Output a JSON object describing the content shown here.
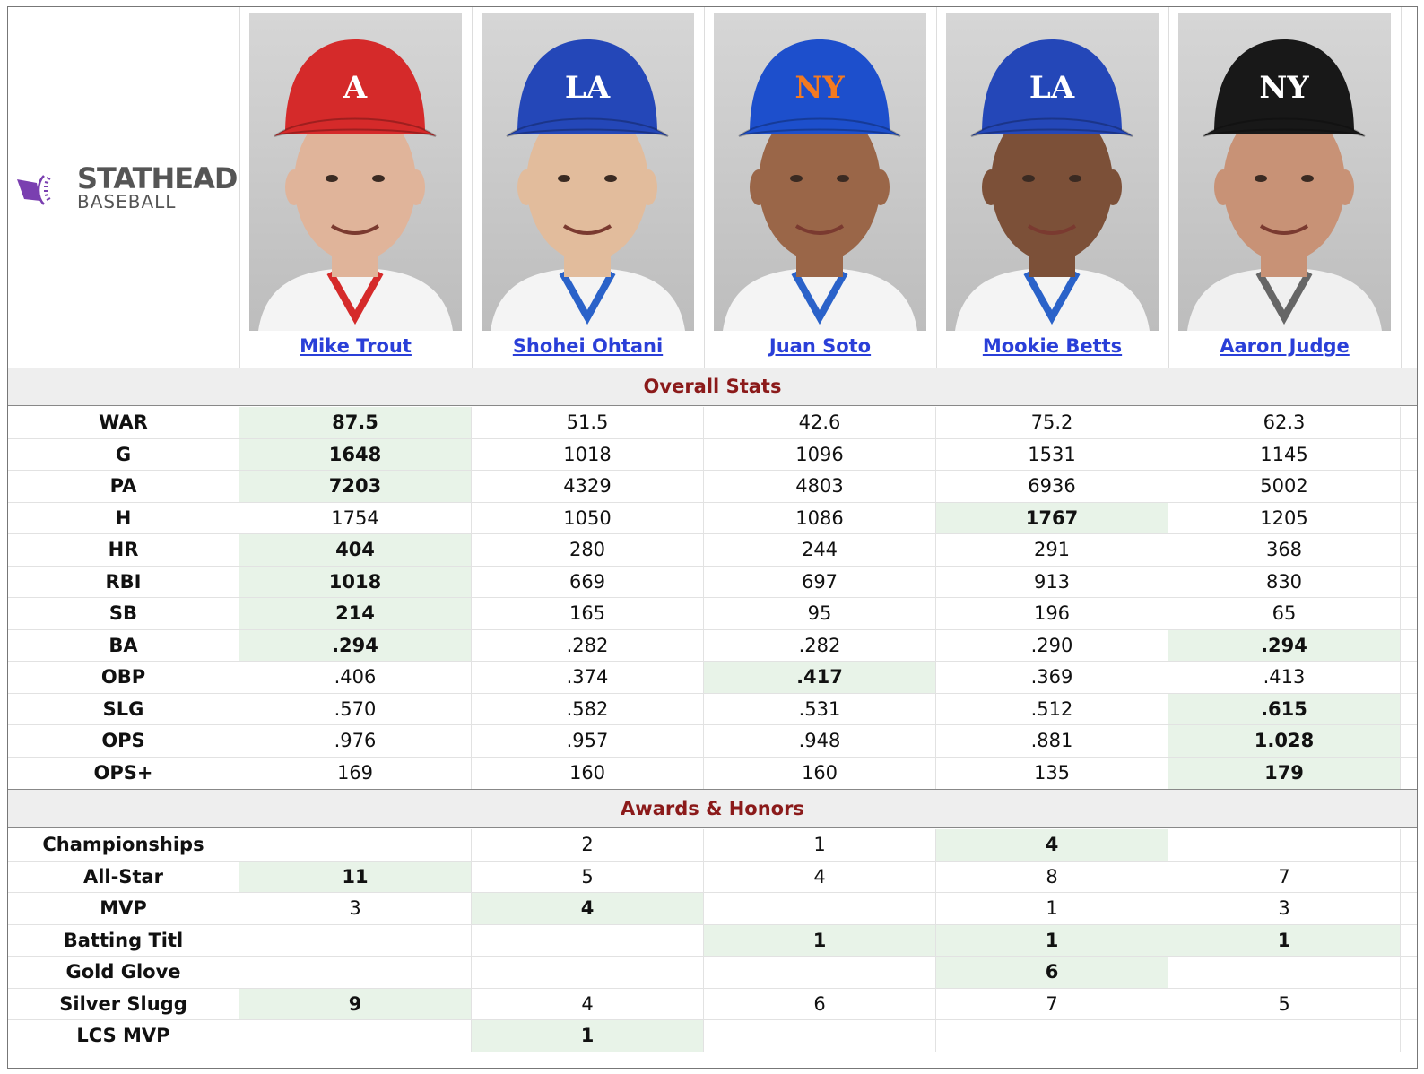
{
  "logo": {
    "line1": "STATHEAD",
    "line2": "BASEBALL",
    "accent_color": "#7a3fb0"
  },
  "players": [
    {
      "name": "Mike Trout",
      "cap_color": "#d52a2a",
      "cap_letter": "A",
      "letter_color": "#ffffff",
      "skin": "#e0b49a",
      "jersey": "#f4f4f4",
      "jersey_trim": "#d52a2a"
    },
    {
      "name": "Shohei Ohtani",
      "cap_color": "#2447b8",
      "cap_letter": "LA",
      "letter_color": "#ffffff",
      "skin": "#e2bc9c",
      "jersey": "#f4f4f4",
      "jersey_trim": "#2a62c9"
    },
    {
      "name": "Juan Soto",
      "cap_color": "#1d4fcc",
      "cap_letter": "NY",
      "letter_color": "#f47a20",
      "skin": "#9a6648",
      "jersey": "#f4f4f4",
      "jersey_trim": "#2a62c9"
    },
    {
      "name": "Mookie Betts",
      "cap_color": "#2447b8",
      "cap_letter": "LA",
      "letter_color": "#ffffff",
      "skin": "#7c5038",
      "jersey": "#f4f4f4",
      "jersey_trim": "#2a62c9"
    },
    {
      "name": "Aaron Judge",
      "cap_color": "#181818",
      "cap_letter": "NY",
      "letter_color": "#ffffff",
      "skin": "#c89276",
      "jersey": "#f0f0f0",
      "jersey_trim": "#666666"
    }
  ],
  "sections": [
    {
      "title": "Overall Stats",
      "rows": [
        {
          "label": "WAR",
          "values": [
            "87.5",
            "51.5",
            "42.6",
            "75.2",
            "62.3"
          ],
          "best": [
            0
          ]
        },
        {
          "label": "G",
          "values": [
            "1648",
            "1018",
            "1096",
            "1531",
            "1145"
          ],
          "best": [
            0
          ]
        },
        {
          "label": "PA",
          "values": [
            "7203",
            "4329",
            "4803",
            "6936",
            "5002"
          ],
          "best": [
            0
          ]
        },
        {
          "label": "H",
          "values": [
            "1754",
            "1050",
            "1086",
            "1767",
            "1205"
          ],
          "best": [
            3
          ]
        },
        {
          "label": "HR",
          "values": [
            "404",
            "280",
            "244",
            "291",
            "368"
          ],
          "best": [
            0
          ]
        },
        {
          "label": "RBI",
          "values": [
            "1018",
            "669",
            "697",
            "913",
            "830"
          ],
          "best": [
            0
          ]
        },
        {
          "label": "SB",
          "values": [
            "214",
            "165",
            "95",
            "196",
            "65"
          ],
          "best": [
            0
          ]
        },
        {
          "label": "BA",
          "values": [
            ".294",
            ".282",
            ".282",
            ".290",
            ".294"
          ],
          "best": [
            0,
            4
          ]
        },
        {
          "label": "OBP",
          "values": [
            ".406",
            ".374",
            ".417",
            ".369",
            ".413"
          ],
          "best": [
            2
          ]
        },
        {
          "label": "SLG",
          "values": [
            ".570",
            ".582",
            ".531",
            ".512",
            ".615"
          ],
          "best": [
            4
          ]
        },
        {
          "label": "OPS",
          "values": [
            ".976",
            ".957",
            ".948",
            ".881",
            "1.028"
          ],
          "best": [
            4
          ]
        },
        {
          "label": "OPS+",
          "values": [
            "169",
            "160",
            "160",
            "135",
            "179"
          ],
          "best": [
            4
          ]
        }
      ]
    },
    {
      "title": "Awards & Honors",
      "rows": [
        {
          "label": "Championships",
          "values": [
            "",
            "2",
            "1",
            "4",
            ""
          ],
          "best": [
            3
          ]
        },
        {
          "label": "All-Star",
          "values": [
            "11",
            "5",
            "4",
            "8",
            "7"
          ],
          "best": [
            0
          ]
        },
        {
          "label": "MVP",
          "values": [
            "3",
            "4",
            "",
            "1",
            "3"
          ],
          "best": [
            1
          ]
        },
        {
          "label": "Batting Titl",
          "values": [
            "",
            "",
            "1",
            "1",
            "1"
          ],
          "best": [
            2,
            3,
            4
          ]
        },
        {
          "label": "Gold Glove",
          "values": [
            "",
            "",
            "",
            "6",
            ""
          ],
          "best": [
            3
          ]
        },
        {
          "label": "Silver Slugg",
          "values": [
            "9",
            "4",
            "6",
            "7",
            "5"
          ],
          "best": [
            0
          ]
        },
        {
          "label": "LCS MVP",
          "values": [
            "",
            "1",
            "",
            "",
            ""
          ],
          "best": [
            1
          ]
        }
      ]
    }
  ]
}
